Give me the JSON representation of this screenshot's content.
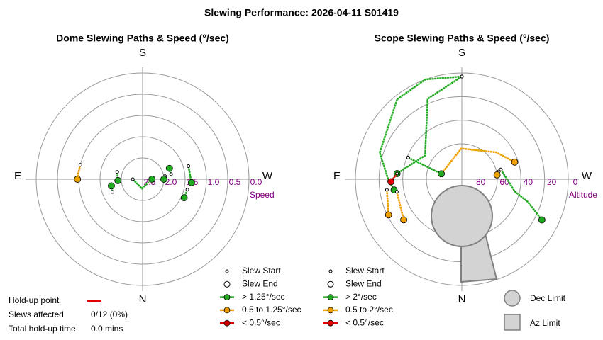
{
  "title": "Slewing Performance: 2026-04-11 S01419",
  "holdup": {
    "point_label": "Hold-up point",
    "point_color": "#e00000",
    "affected_label": "Slews affected",
    "affected_value": "0/12 (0%)",
    "time_label": "Total hold-up time",
    "time_value": "0.0 mins"
  },
  "chart_data": [
    {
      "type": "polar",
      "title": "Dome Slewing Paths & Speed (°/sec)",
      "directions": {
        "S": "S",
        "E": "E",
        "W": "W",
        "N": "N"
      },
      "r_label": "Speed",
      "rlim": [
        2.5,
        0
      ],
      "rticks": [
        {
          "value": 2.5,
          "label": "2.5"
        },
        {
          "value": 2,
          "label": "2.0"
        },
        {
          "value": 1.5,
          "label": "1.5"
        },
        {
          "value": 1,
          "label": "1.0"
        },
        {
          "value": 0.5,
          "label": "0.5"
        },
        {
          "value": 0,
          "label": "0.0"
        }
      ],
      "series": [
        {
          "color": "#f0a000",
          "x": [
            103,
            95,
            90
          ],
          "values": [
            1.0,
            0.98,
            0.97
          ]
        },
        {
          "color": "#22aa22",
          "x": [
            90,
            4,
            270
          ],
          "values": [
            2.27,
            2.28,
            2.28
          ]
        },
        {
          "color": "#22aa22",
          "x": [
            106,
            87
          ],
          "values": [
            1.88,
            1.92
          ]
        },
        {
          "color": "#22aa22",
          "x": [
            67,
            78
          ],
          "values": [
            1.73,
            1.75
          ]
        },
        {
          "color": "#22aa22",
          "x": [
            260,
            248
          ],
          "values": [
            1.82,
            1.82
          ]
        },
        {
          "color": "#22aa22",
          "x": [
            262,
            270
          ],
          "values": [
            1.97,
            2.0
          ]
        },
        {
          "color": "#22aa22",
          "x": [
            254,
            274
          ],
          "values": [
            1.38,
            1.35
          ]
        },
        {
          "color": "#22aa22",
          "x": [
            283,
            294
          ],
          "values": [
            1.42,
            1.43
          ]
        }
      ],
      "legend": [
        {
          "label": "Slew Start",
          "marker": "start",
          "color": "#ffffff"
        },
        {
          "label": "Slew End",
          "marker": "end",
          "color": "#ffffff"
        },
        {
          "label": "> 1.25°/sec",
          "marker": "line",
          "color": "#22aa22"
        },
        {
          "label": "0.5 to 1.25°/sec",
          "marker": "line",
          "color": "#f0a000"
        },
        {
          "label": "< 0.5°/sec",
          "marker": "line",
          "color": "#e00000"
        }
      ]
    },
    {
      "type": "polar",
      "title": "Scope Slewing Paths & Speed (°/sec)",
      "directions": {
        "S": "S",
        "E": "E",
        "W": "W",
        "N": "N"
      },
      "r_label": "Altitude",
      "rlim": [
        90,
        0
      ],
      "rticks": [
        80,
        60,
        40,
        20,
        0
      ],
      "series": [
        {
          "color": "#22aa22",
          "x": [
            180,
            160,
            141,
            108,
            89,
            81
          ],
          "values": [
            3,
            0,
            3,
            17,
            28,
            32
          ]
        },
        {
          "color": "#22aa22",
          "x": [
            180,
            157,
            136,
            123,
            95
          ],
          "values": [
            3,
            16,
            46,
            53,
            35
          ]
        },
        {
          "color": "#e00000",
          "x": [
            95,
            88
          ],
          "values": [
            35,
            30
          ]
        },
        {
          "color": "#f0a000",
          "x": [
            105,
            179,
            232,
            252
          ],
          "values": [
            72,
            64,
            53,
            43
          ]
        },
        {
          "color": "#f0a000",
          "x": [
            82,
            64
          ],
          "values": [
            26,
            21
          ]
        },
        {
          "color": "#f0a000",
          "x": [
            79,
            55
          ],
          "values": [
            34,
            30
          ]
        },
        {
          "color": "#22aa22",
          "x": [
            256,
            283,
            289,
            297
          ],
          "values": [
            56,
            44,
            31,
            14
          ]
        },
        {
          "color": "#f0a000",
          "x": [
            258,
            263
          ],
          "values": [
            58,
            60
          ]
        },
        {
          "color": "#22aa22",
          "x": [
            112,
            105
          ],
          "values": [
            41,
            72
          ]
        }
      ],
      "legend": [
        {
          "label": "Slew Start",
          "marker": "start",
          "color": "#ffffff"
        },
        {
          "label": "Slew End",
          "marker": "end",
          "color": "#ffffff"
        },
        {
          "label": "> 2°/sec",
          "marker": "line",
          "color": "#22aa22"
        },
        {
          "label": "0.5 to 2°/sec",
          "marker": "line",
          "color": "#f0a000"
        },
        {
          "label": "< 0.5°/sec",
          "marker": "line",
          "color": "#e00000"
        }
      ],
      "limits": {
        "dec": "Dec Limit",
        "az": "Az Limit"
      }
    }
  ]
}
